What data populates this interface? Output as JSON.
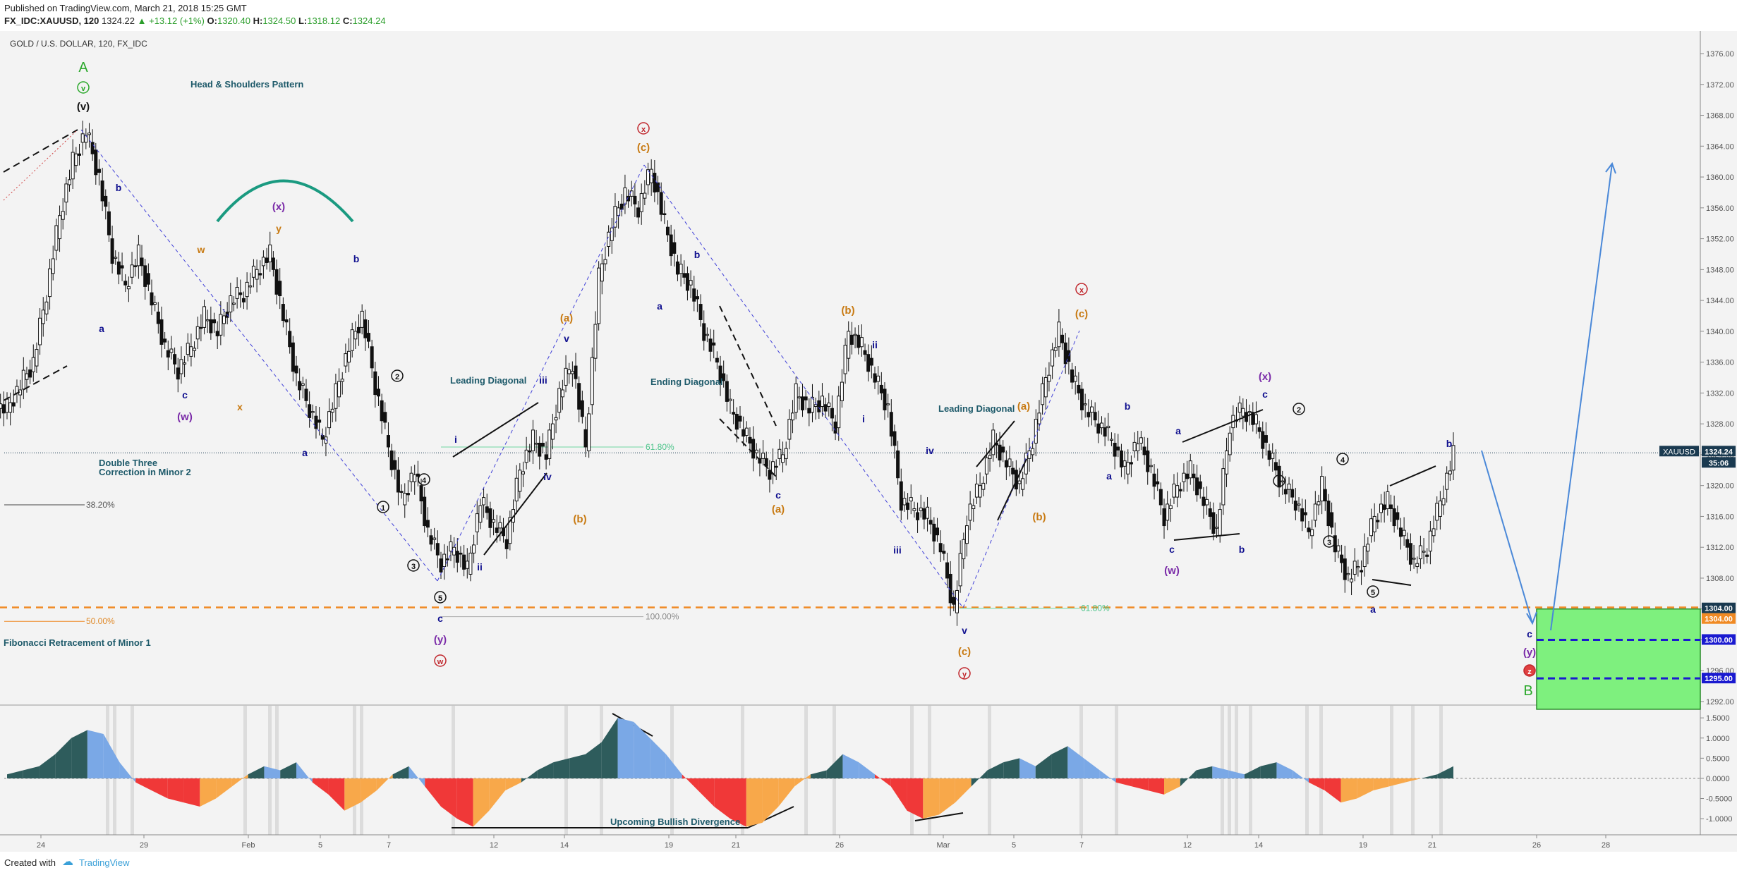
{
  "header": {
    "published": "Published on TradingView.com, March 21, 2018 15:25 GMT",
    "symbol": "FX_IDC:XAUUSD, 120",
    "last": "1324.22",
    "change": "▲ +13.12 (+1%)",
    "o_label": "O:",
    "o_val": "1320.40",
    "h_label": "H:",
    "h_val": "1324.50",
    "l_label": "L:",
    "l_val": "1318.12",
    "c_label": "C:",
    "c_val": "1324.24"
  },
  "footer": {
    "created_with": "Created with",
    "brand": "TradingView"
  },
  "colors": {
    "navy": "#10108f",
    "orange": "#c87a12",
    "purple": "#7a2aa8",
    "green": "#2aa82a",
    "red": "#c0262c",
    "teal": "#1e5a6a",
    "fib_orange": "#f08a24",
    "zone": "#7ef07e"
  },
  "chart_data": [
    {
      "type": "line",
      "title": "GOLD / U.S. DOLLAR, 120, FX_IDC",
      "yaxis": {
        "ticks": [
          1292,
          1296,
          1300,
          1304,
          1308,
          1312,
          1316,
          1320,
          1324,
          1328,
          1332,
          1336,
          1340,
          1344,
          1348,
          1352,
          1356,
          1360,
          1364,
          1368,
          1372,
          1376
        ],
        "range": [
          1290,
          1380
        ],
        "side": "right"
      },
      "xaxis": {
        "ticks": [
          "24",
          "29",
          "Feb",
          "5",
          "7",
          "12",
          "14",
          "19",
          "21",
          "26",
          "Mar",
          "5",
          "7",
          "12",
          "14",
          "19",
          "21",
          "26",
          "28"
        ]
      },
      "series": [
        {
          "values": [
            1330,
            1333,
            1336,
            1345,
            1355,
            1362,
            1366,
            1360,
            1350,
            1346,
            1350,
            1344,
            1338,
            1335,
            1338,
            1342,
            1340,
            1344,
            1345,
            1348,
            1350,
            1342,
            1334,
            1330,
            1326,
            1332,
            1338,
            1342,
            1333,
            1325,
            1318,
            1322,
            1314,
            1310,
            1312,
            1309,
            1318,
            1315,
            1313,
            1322,
            1326,
            1324,
            1332,
            1336,
            1325,
            1347,
            1354,
            1358,
            1356,
            1361,
            1354,
            1348,
            1346,
            1340,
            1336,
            1330,
            1327,
            1324,
            1322,
            1324,
            1332,
            1330,
            1331,
            1328,
            1340,
            1338,
            1334,
            1330,
            1318,
            1317,
            1316,
            1312,
            1304,
            1316,
            1320,
            1326,
            1323,
            1320,
            1326,
            1334,
            1340,
            1334,
            1330,
            1328,
            1326,
            1322,
            1326,
            1322,
            1316,
            1320,
            1322,
            1318,
            1314,
            1328,
            1330,
            1328,
            1324,
            1320,
            1318,
            1314,
            1320,
            1312,
            1308,
            1310,
            1316,
            1318,
            1314,
            1310,
            1312,
            1318,
            1324
          ]
        }
      ],
      "labels": {
        "pattern_title": "Head & Shoulders Pattern",
        "leading_diag_1": "Leading Diagonal",
        "ending_diag": "Ending Diagonal",
        "leading_diag_2": "Leading Diagonal",
        "double_three_1": "Double Three",
        "double_three_2": "Correction in Minor 2",
        "fib_title": "Fibonacci Retracement of Minor 1",
        "fib_382": "38.20%",
        "fib_500": "50.00%",
        "fib_618_a": "61.80%",
        "fib_618_b": "61.80%",
        "fib_100": "100.00%",
        "price_tag": "XAUUSD",
        "price_val": "1324.24",
        "time_val": "35:06",
        "zone_1304a": "1304.00",
        "zone_1304b": "1304.00",
        "zone_1300": "1300.00",
        "zone_1295": "1295.00",
        "A": "A",
        "B": "B",
        "v_circ": "v",
        "v_black": "(v)",
        "a1": "a",
        "b1": "b",
        "c1": "c",
        "w1": "(w)",
        "w_or": "w",
        "x_or": "x",
        "y_or": "y",
        "x_pur": "(x)",
        "b2": "b",
        "a2": "a",
        "n1": "1",
        "n2": "2",
        "n3": "3",
        "n4": "4",
        "n5": "5",
        "c2": "c",
        "y_pur": "(y)",
        "w_red": "w",
        "i1": "i",
        "ii1": "ii",
        "iii1": "iii",
        "iv1": "iv",
        "v1": "v",
        "a_or1": "(a)",
        "b_or1": "(b)",
        "c_or1": "(c)",
        "x_red1": "x",
        "a3": "a",
        "b3": "b",
        "c3": "c",
        "a_or2": "(a)",
        "b_or2": "(b)",
        "i2": "i",
        "ii2": "ii",
        "iii2": "iii",
        "iv2": "iv",
        "v2": "v",
        "c_or2": "(c)",
        "y_red": "y",
        "a_or3": "(a)",
        "b_or3": "(b)",
        "c_or3": "(c)",
        "x_red2": "x",
        "b4": "b",
        "a4": "a",
        "a5": "a",
        "c4": "c",
        "b5": "b",
        "w2": "(w)",
        "c5": "c",
        "x_pur2": "(x)",
        "m1": "1",
        "m2": "2",
        "m3": "3",
        "m4": "4",
        "m5": "5",
        "a6": "a",
        "b6": "b",
        "c6": "c",
        "y_pur2": "(y)",
        "z_red": "z"
      }
    },
    {
      "type": "area",
      "yaxis": {
        "ticks": [
          -1.0,
          -0.5,
          0.0,
          0.5,
          1.0,
          1.5
        ],
        "tick_labels": [
          "-1.0000",
          "-0.5000",
          "0.0000",
          "0.5000",
          "1.0000",
          "1.5000"
        ],
        "range": [
          -1.4,
          1.8
        ]
      },
      "series": [
        {
          "values": [
            0.1,
            0.2,
            0.3,
            0.6,
            1.0,
            1.2,
            1.1,
            0.4,
            -0.1,
            -0.3,
            -0.5,
            -0.6,
            -0.7,
            -0.5,
            -0.2,
            0.1,
            0.3,
            0.2,
            0.4,
            -0.1,
            -0.4,
            -0.8,
            -0.6,
            -0.3,
            0.1,
            0.3,
            -0.2,
            -0.7,
            -1.0,
            -1.2,
            -0.8,
            -0.3,
            -0.1,
            0.2,
            0.4,
            0.5,
            0.6,
            0.9,
            1.5,
            1.4,
            1.0,
            0.6,
            0.1,
            -0.3,
            -0.7,
            -1.0,
            -1.2,
            -1.1,
            -0.7,
            -0.2,
            0.1,
            0.2,
            0.6,
            0.4,
            0.1,
            -0.2,
            -0.8,
            -1.0,
            -0.9,
            -0.6,
            -0.2,
            0.2,
            0.4,
            0.5,
            0.3,
            0.6,
            0.8,
            0.5,
            0.2,
            -0.1,
            -0.2,
            -0.3,
            -0.4,
            -0.2,
            0.2,
            0.3,
            0.2,
            0.1,
            0.3,
            0.4,
            0.2,
            -0.1,
            -0.3,
            -0.6,
            -0.5,
            -0.3,
            -0.2,
            -0.1,
            0.0,
            0.1,
            0.3
          ]
        }
      ],
      "labels": {
        "divergence": "Upcoming Bullish Divergence"
      }
    }
  ]
}
